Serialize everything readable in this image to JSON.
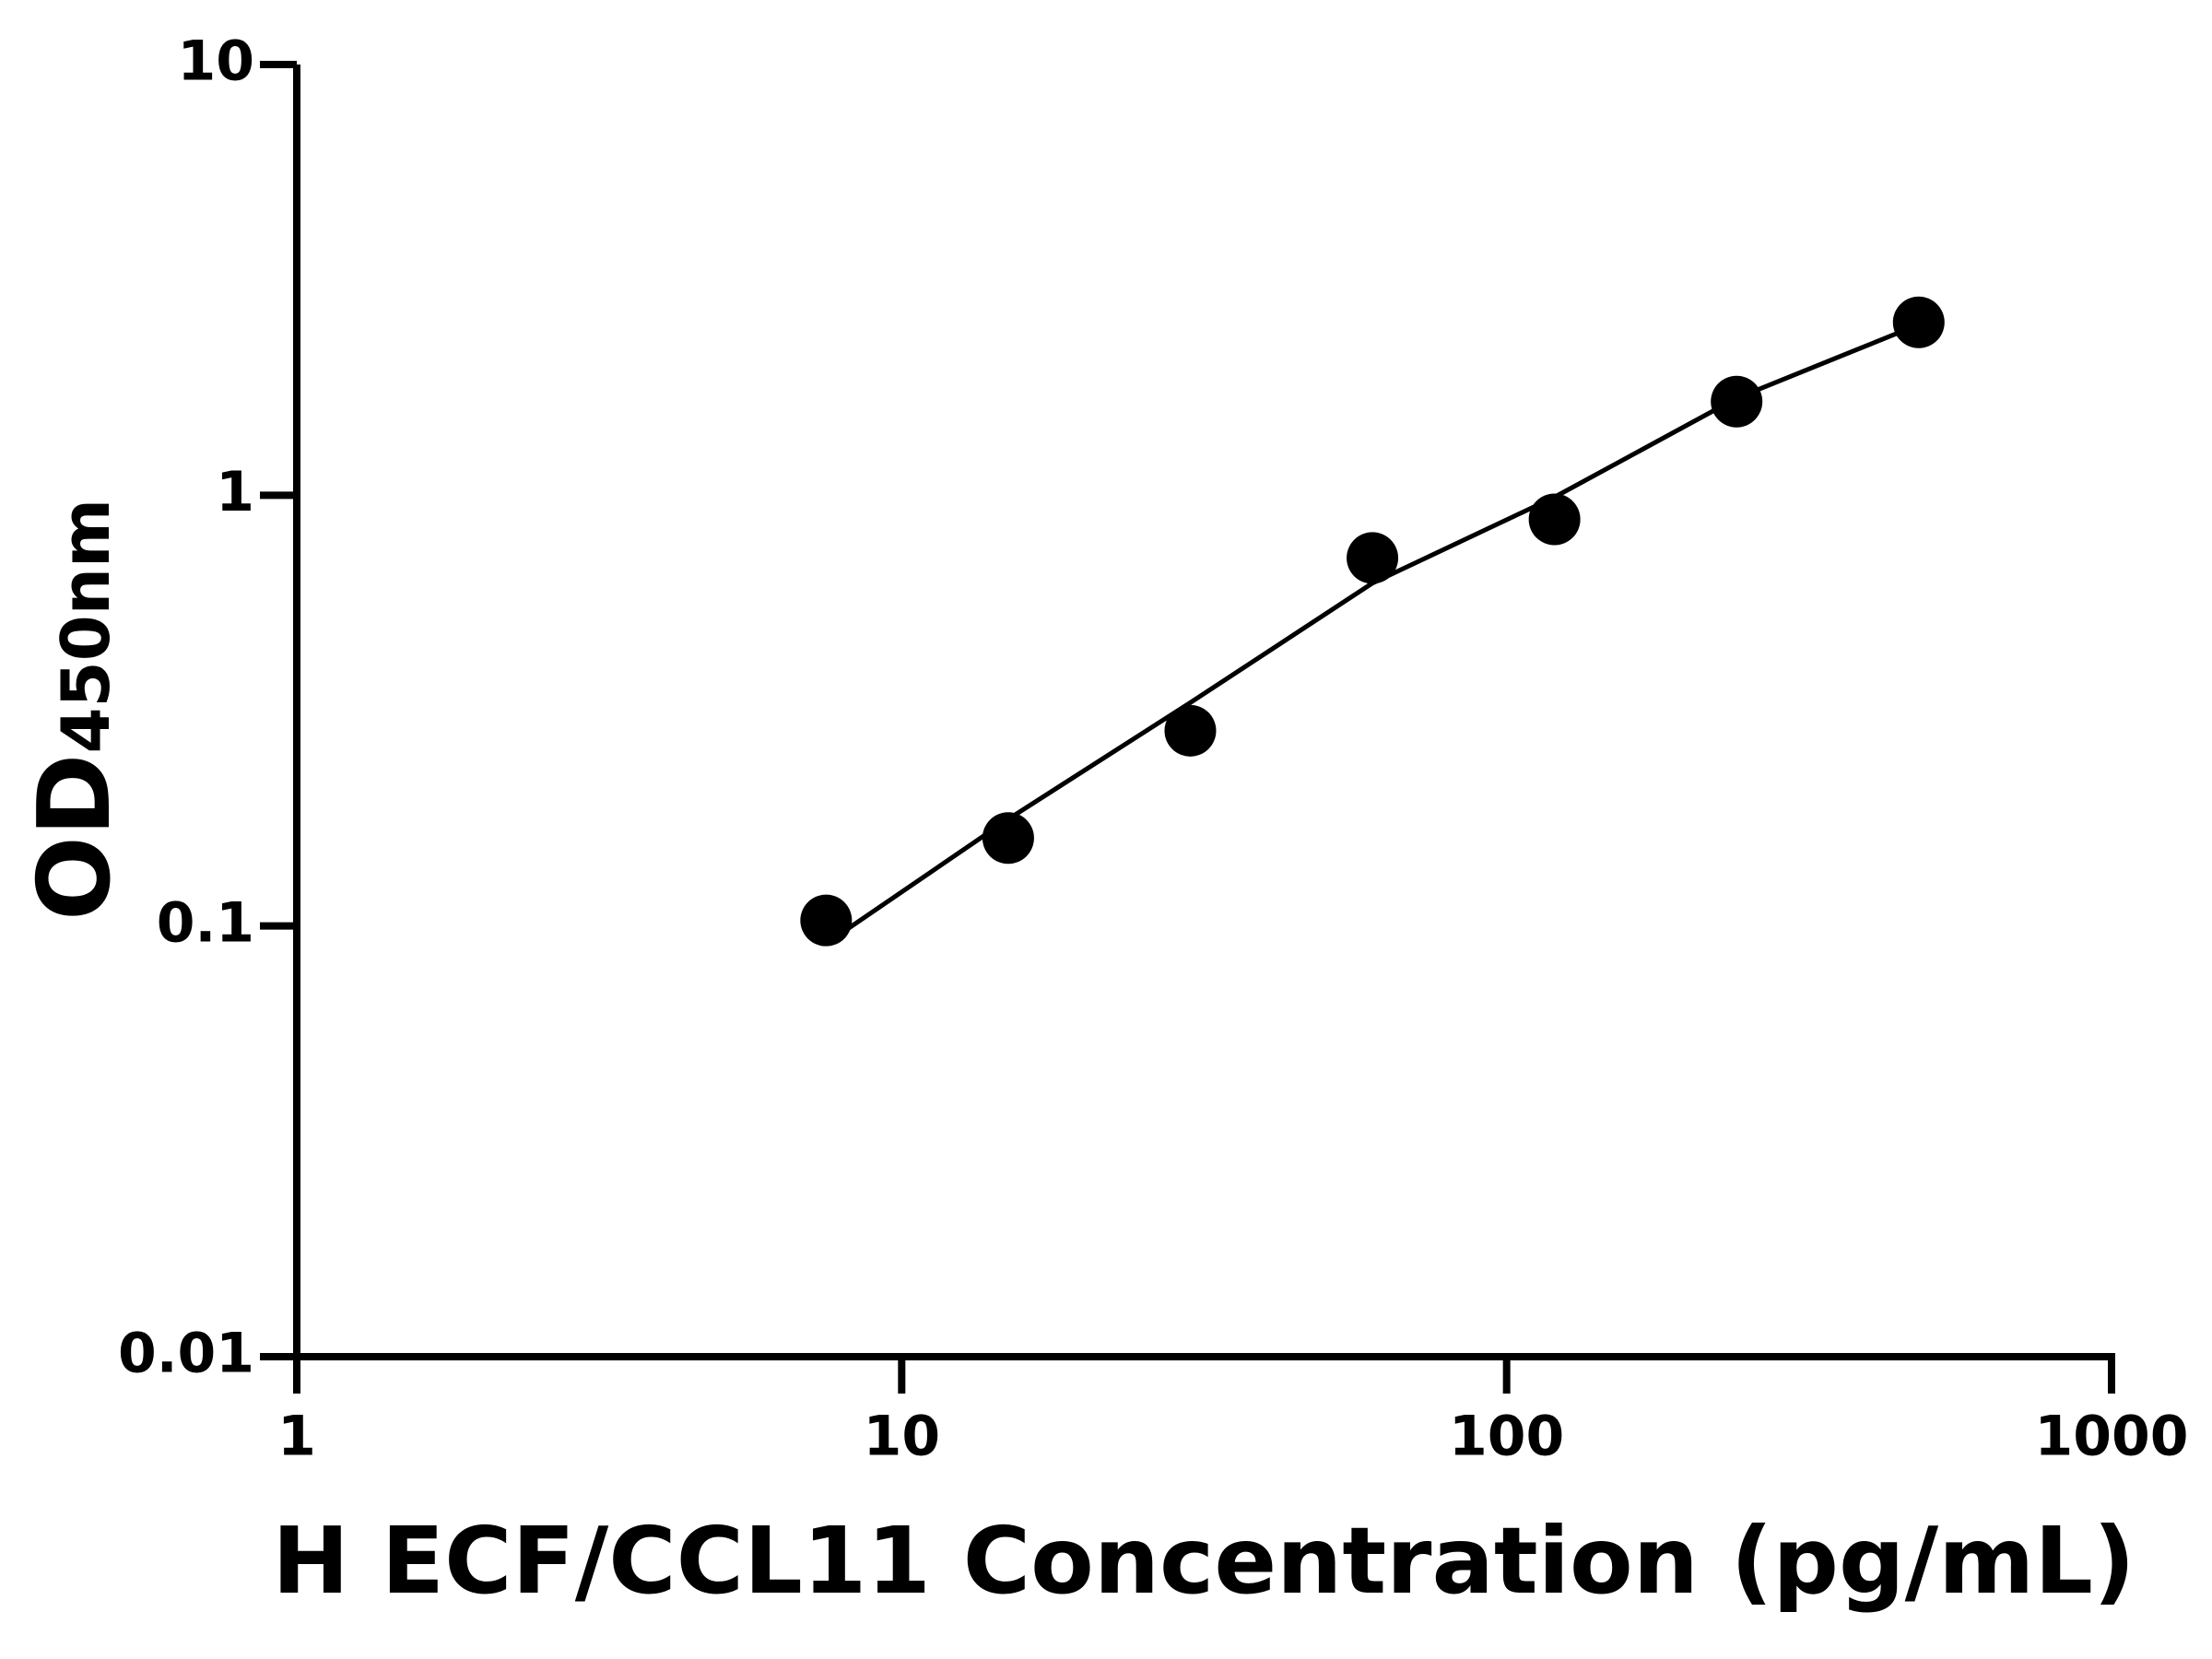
{
  "chart_data": {
    "type": "scatter",
    "xlabel": "H ECF/CCL11 Concentration (pg/mL)",
    "ylabel": {
      "main": "OD",
      "sub": "450nm"
    },
    "xscale": "log",
    "yscale": "log",
    "xlim": [
      1,
      1000
    ],
    "ylim": [
      0.01,
      10
    ],
    "xticks": [
      1,
      10,
      100,
      1000
    ],
    "yticks": [
      0.01,
      0.1,
      1,
      10
    ],
    "series": [
      {
        "kind": "points",
        "color": "#000000",
        "x": [
          7.5,
          15,
          30,
          60,
          120,
          240,
          480
        ],
        "values": [
          0.103,
          0.16,
          0.284,
          0.715,
          0.879,
          1.65,
          2.52
        ]
      },
      {
        "kind": "fit",
        "color": "#000000",
        "x": [
          7.5,
          15,
          30,
          60,
          120,
          240,
          480
        ],
        "values": [
          0.091,
          0.177,
          0.33,
          0.625,
          0.99,
          1.68,
          2.49
        ]
      }
    ]
  }
}
